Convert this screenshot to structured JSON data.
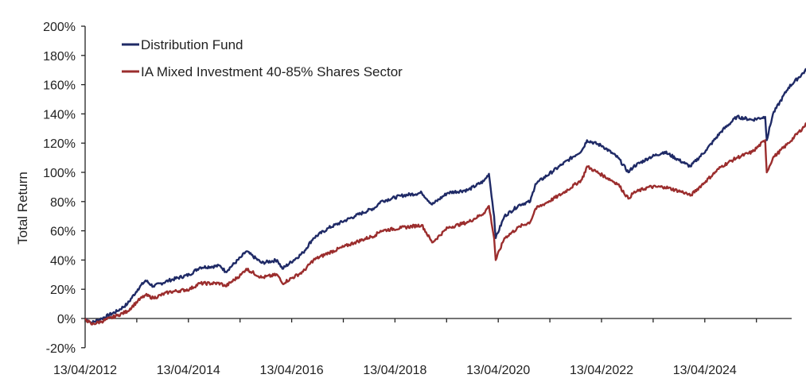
{
  "chart_data": {
    "type": "line",
    "title": "",
    "xlabel": "",
    "ylabel": "Total Return",
    "ylim": [
      -20,
      200
    ],
    "xlim": [
      2012.28,
      2026.55
    ],
    "y_ticks": [
      "-20%",
      "0%",
      "20%",
      "40%",
      "60%",
      "80%",
      "100%",
      "120%",
      "140%",
      "160%",
      "180%",
      "200%"
    ],
    "y_tick_values": [
      -20,
      0,
      20,
      40,
      60,
      80,
      100,
      120,
      140,
      160,
      180,
      200
    ],
    "x_tick_labels": [
      "13/04/2012",
      "13/04/2014",
      "13/04/2016",
      "13/04/2018",
      "13/04/2020",
      "13/04/2022",
      "13/04/2024"
    ],
    "x_tick_label_years": [
      2012.28,
      2014.28,
      2016.28,
      2018.28,
      2020.28,
      2022.28,
      2024.28
    ],
    "x_minor_tick_years": [
      2012.28,
      2013.28,
      2014.28,
      2015.28,
      2016.28,
      2017.28,
      2018.28,
      2019.28,
      2020.28,
      2021.28,
      2022.28,
      2023.28,
      2024.28,
      2025.28
    ],
    "grid": false,
    "legend_position": "top-left",
    "series": [
      {
        "name": "Distribution Fund",
        "color": "#1f2a66",
        "x": [
          2012.28,
          2012.4,
          2012.6,
          2012.9,
          2013.1,
          2013.3,
          2013.45,
          2013.6,
          2013.9,
          2014.3,
          2014.5,
          2014.9,
          2015.0,
          2015.3,
          2015.4,
          2015.7,
          2016.0,
          2016.1,
          2016.5,
          2016.7,
          2017.0,
          2017.5,
          2017.9,
          2018.0,
          2018.4,
          2018.8,
          2019.0,
          2019.3,
          2019.7,
          2020.0,
          2020.1,
          2020.2,
          2020.23,
          2020.4,
          2020.7,
          2020.9,
          2021.0,
          2021.5,
          2021.9,
          2022.0,
          2022.3,
          2022.6,
          2022.8,
          2022.9,
          2023.2,
          2023.5,
          2023.9,
          2024.0,
          2024.3,
          2024.6,
          2024.9,
          2025.2,
          2025.45,
          2025.48,
          2025.6,
          2025.9,
          2026.3,
          2026.5
        ],
        "values": [
          0,
          -3,
          0,
          5,
          10,
          20,
          26,
          22,
          26,
          30,
          35,
          36,
          32,
          42,
          46,
          38,
          40,
          34,
          45,
          55,
          62,
          70,
          76,
          80,
          84,
          86,
          78,
          86,
          88,
          94,
          99,
          70,
          55,
          70,
          78,
          80,
          92,
          105,
          115,
          122,
          118,
          110,
          100,
          104,
          110,
          114,
          106,
          104,
          115,
          128,
          138,
          136,
          138,
          122,
          140,
          158,
          172,
          176
        ]
      },
      {
        "name": "IA Mixed Investment 40-85% Shares Sector",
        "color": "#9b2d2d",
        "x": [
          2012.28,
          2012.4,
          2012.6,
          2012.9,
          2013.1,
          2013.3,
          2013.45,
          2013.6,
          2013.9,
          2014.3,
          2014.5,
          2014.9,
          2015.0,
          2015.3,
          2015.4,
          2015.7,
          2016.0,
          2016.1,
          2016.5,
          2016.7,
          2017.0,
          2017.5,
          2017.9,
          2018.0,
          2018.4,
          2018.8,
          2019.0,
          2019.3,
          2019.7,
          2020.0,
          2020.1,
          2020.2,
          2020.23,
          2020.4,
          2020.7,
          2020.9,
          2021.0,
          2021.5,
          2021.9,
          2022.0,
          2022.3,
          2022.6,
          2022.8,
          2022.9,
          2023.2,
          2023.5,
          2023.9,
          2024.0,
          2024.3,
          2024.6,
          2024.9,
          2025.2,
          2025.45,
          2025.48,
          2025.6,
          2025.9,
          2026.3,
          2026.5
        ],
        "values": [
          0,
          -4,
          -2,
          2,
          5,
          12,
          16,
          14,
          18,
          20,
          24,
          24,
          22,
          30,
          34,
          28,
          30,
          24,
          32,
          40,
          45,
          52,
          57,
          60,
          62,
          64,
          52,
          62,
          66,
          72,
          77,
          55,
          40,
          55,
          63,
          66,
          75,
          85,
          95,
          104,
          98,
          92,
          82,
          86,
          90,
          90,
          86,
          84,
          94,
          104,
          110,
          114,
          122,
          100,
          110,
          120,
          135,
          140
        ]
      }
    ]
  }
}
